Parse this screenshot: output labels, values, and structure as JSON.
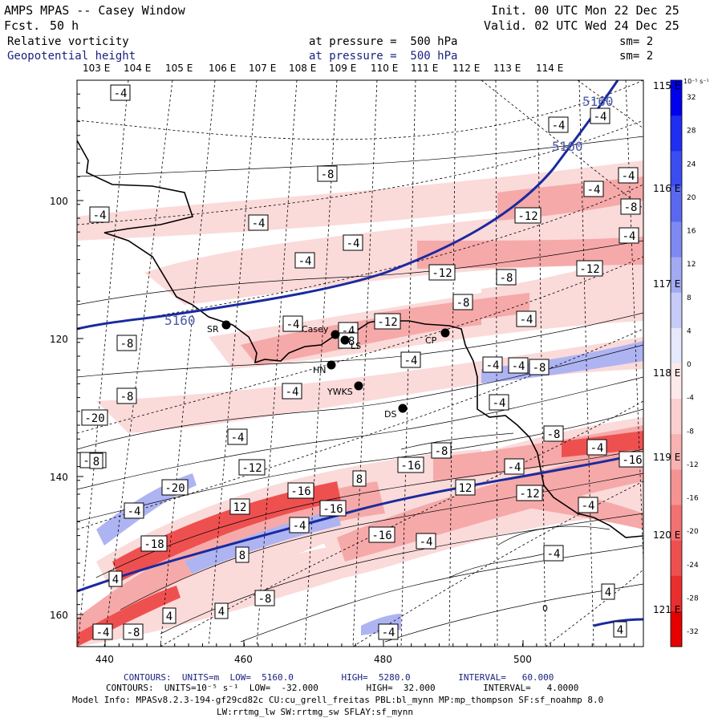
{
  "header": {
    "model": "AMPS MPAS -- Casey Window",
    "fcst_label": "Fcst.",
    "fcst_value": "50 h",
    "init": "Init. 00 UTC Mon 22 Dec 25",
    "valid": "Valid. 02 UTC Wed 24 Dec 25",
    "field1": "Relative vorticity",
    "field1_level": "at pressure =  500 hPa",
    "field1_sm": "sm= 2",
    "field2": "Geopotential height",
    "field2_level": "at pressure =  500 hPa",
    "field2_sm": "sm= 2"
  },
  "top_lon_labels": [
    "103 E",
    "104 E",
    "105 E",
    "106 E",
    "107 E",
    "108 E",
    "109 E",
    "110 E",
    "111 E",
    "112 E",
    "113 E",
    "114 E"
  ],
  "right_lon_labels": [
    "115 E",
    "116 E",
    "117 E",
    "118 E",
    "119 E",
    "120 E",
    "121 E"
  ],
  "x_ticks": [
    "440",
    "460",
    "480",
    "500"
  ],
  "y_ticks": [
    "100",
    "120",
    "140",
    "160"
  ],
  "colorbar": {
    "unit": "10⁻⁵ s⁻¹",
    "ticks": [
      "32",
      "28",
      "24",
      "20",
      "16",
      "12",
      "8",
      "4",
      "0",
      "-4",
      "-8",
      "-12",
      "-16",
      "-20",
      "-24",
      "-28",
      "-32"
    ]
  },
  "stations": [
    {
      "name": "SR"
    },
    {
      "name": "Casey"
    },
    {
      "name": "LS"
    },
    {
      "name": "HN"
    },
    {
      "name": "YWKS"
    },
    {
      "name": "CP"
    },
    {
      "name": "DS"
    }
  ],
  "height_contour_labels": [
    "5160",
    "5160",
    "5160"
  ],
  "vorticity_box_labels": [
    "-4",
    "-4",
    "-4",
    "-8",
    "-4",
    "-4",
    "-4",
    "-4",
    "-8",
    "-4",
    "-12",
    "-4",
    "-4",
    "-8",
    "-12",
    "-12",
    "-8",
    "-4",
    "-12",
    "-4",
    "-4",
    "-8",
    "-8",
    "-4",
    "-4",
    "-4",
    "-8",
    "-4",
    "-4",
    "-8",
    "-20",
    "-4",
    "-8",
    "-4",
    "-8",
    "-16",
    "-12",
    "-12",
    "-16",
    "-4",
    "-16",
    "8",
    "12",
    "-20",
    "-4",
    "12",
    "-16",
    "-4",
    "-12",
    "-4",
    "-16",
    "-18",
    "-4",
    "8",
    "4",
    "-4",
    "-8",
    "4",
    "4",
    "4",
    "-8",
    "-4",
    "-4",
    "4",
    "8"
  ],
  "footer": {
    "line1": "CONTOURS:  UNITS=m  LOW=  5160.0         HIGH=  5280.0         INTERVAL=   60.000",
    "line2": "CONTOURS:  UNITS=10⁻⁵ s⁻¹  LOW=  -32.000         HIGH=  32.000         INTERVAL=   4.0000",
    "line3": "Model Info: MPASv8.2.3-194-gf29cd82c CU:cu_grell_freitas PBL:bl_mynn MP:mp_thompson SF:sf_noahmp 8.0",
    "line4": "LW:rrtmg_lw SW:rrtmg_sw SFLAY:sf_mynn"
  },
  "colors": {
    "height_contour": "#1a2aa0",
    "negative_vort": "#f08080",
    "positive_vort": "#6b6be0"
  }
}
